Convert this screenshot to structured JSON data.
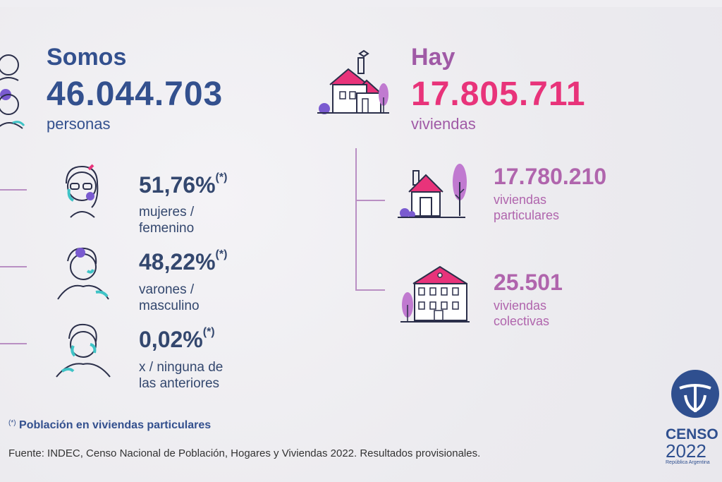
{
  "population": {
    "lead": "Somos",
    "value": "46.044.703",
    "unit": "personas"
  },
  "housing": {
    "lead": "Hay",
    "value": "17.805.711",
    "unit": "viviendas"
  },
  "gender": [
    {
      "pct": "51,76%",
      "mark": "(*)",
      "line1": "mujeres /",
      "line2": "femenino",
      "icon": "woman-icon"
    },
    {
      "pct": "48,22%",
      "mark": "(*)",
      "line1": "varones /",
      "line2": "masculino",
      "icon": "man-icon"
    },
    {
      "pct": "0,02%",
      "mark": "(*)",
      "line1": "x / ninguna de",
      "line2": "las anteriores",
      "icon": "person-icon"
    }
  ],
  "dwellings": [
    {
      "value": "17.780.210",
      "line1": "viviendas",
      "line2": "particulares",
      "icon": "house-icon"
    },
    {
      "value": "25.501",
      "line1": "viviendas",
      "line2": "colectivas",
      "icon": "building-icon"
    }
  ],
  "footnote": {
    "mark": "(*)",
    "text": "Población en viviendas particulares"
  },
  "source": "Fuente: INDEC, Censo Nacional de Población, Hogares y Viviendas 2022. Resultados provisionales.",
  "logo": {
    "word": "CENSO",
    "year": "2022",
    "tagline": "República Argentina"
  },
  "colors": {
    "navy": "#33508e",
    "pink": "#e8337a",
    "purple": "#b065ad"
  }
}
